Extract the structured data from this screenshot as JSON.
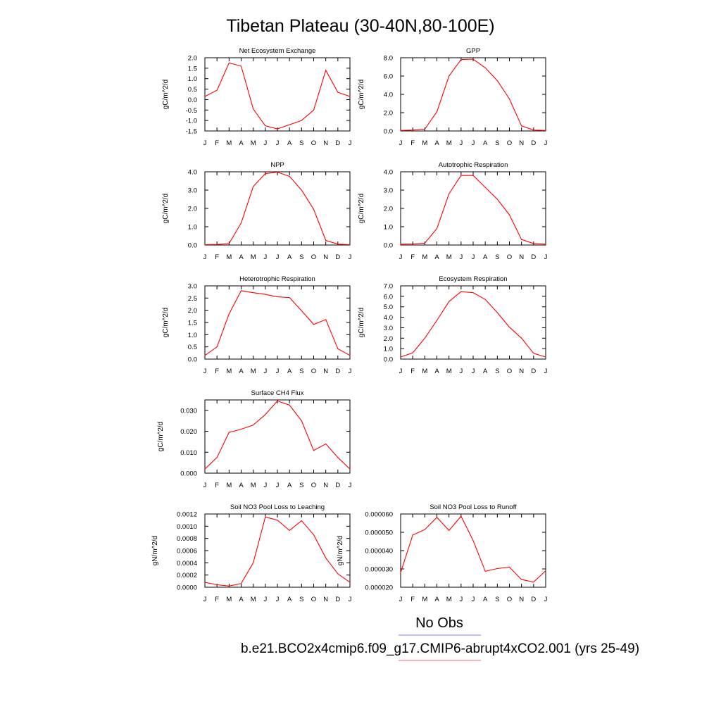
{
  "title": "Tibetan Plateau (30-40N,80-100E)",
  "legend": {
    "items": [
      {
        "label": "No Obs",
        "color": "#8080ff"
      },
      {
        "label": "b.e21.BCO2x4cmip6.f09_g17.CMIP6-abrupt4xCO2.001 (yrs 25-49)",
        "color": "#ff6060"
      }
    ]
  },
  "series_color": "#ff0000",
  "months": [
    "J",
    "F",
    "M",
    "A",
    "M",
    "J",
    "J",
    "A",
    "S",
    "O",
    "N",
    "D",
    "J"
  ],
  "chart_data": [
    {
      "type": "line",
      "title": "Net Ecosystem Exchange",
      "ylabel": "gC/m^2/d",
      "ylim": [
        -1.5,
        2.0
      ],
      "yticks": [
        "2.0",
        "1.5",
        "1.0",
        "0.5",
        "0.0",
        "-0.5",
        "-1.0",
        "-1.5"
      ],
      "ytick_values": [
        2.0,
        1.5,
        1.0,
        0.5,
        0.0,
        -0.5,
        -1.0,
        -1.5
      ],
      "values": [
        0.15,
        0.45,
        1.75,
        1.6,
        -0.45,
        -1.25,
        -1.4,
        -1.2,
        -1.0,
        -0.5,
        1.4,
        0.35,
        0.15
      ]
    },
    {
      "type": "line",
      "title": "GPP",
      "ylabel": "gC/m^2/d",
      "ylim": [
        0.0,
        8.0
      ],
      "yticks": [
        "8.0",
        "6.0",
        "4.0",
        "2.0",
        "0.0"
      ],
      "ytick_values": [
        8.0,
        6.0,
        4.0,
        2.0,
        0.0
      ],
      "values": [
        0.05,
        0.1,
        0.2,
        2.1,
        6.0,
        7.8,
        7.85,
        6.9,
        5.5,
        3.5,
        0.55,
        0.1,
        0.05
      ]
    },
    {
      "type": "line",
      "title": "NPP",
      "ylabel": "gC/m^2/d",
      "ylim": [
        0.0,
        4.0
      ],
      "yticks": [
        "4.0",
        "3.0",
        "2.0",
        "1.0",
        "0.0"
      ],
      "ytick_values": [
        4.0,
        3.0,
        2.0,
        1.0,
        0.0
      ],
      "values": [
        0.02,
        0.03,
        0.08,
        1.2,
        3.2,
        3.9,
        3.98,
        3.75,
        3.0,
        1.95,
        0.25,
        0.05,
        0.02
      ]
    },
    {
      "type": "line",
      "title": "Autotrophic Respiration",
      "ylabel": "gC/m^2/d",
      "ylim": [
        0.0,
        4.0
      ],
      "yticks": [
        "4.0",
        "3.0",
        "2.0",
        "1.0",
        "0.0"
      ],
      "ytick_values": [
        4.0,
        3.0,
        2.0,
        1.0,
        0.0
      ],
      "values": [
        0.05,
        0.06,
        0.1,
        0.9,
        2.8,
        3.8,
        3.8,
        3.15,
        2.5,
        1.65,
        0.3,
        0.08,
        0.05
      ]
    },
    {
      "type": "line",
      "title": "Heterotrophic Respiration",
      "ylabel": "gC/m^2/d",
      "ylim": [
        0.0,
        3.0
      ],
      "yticks": [
        "3.0",
        "2.5",
        "2.0",
        "1.5",
        "1.0",
        "0.5",
        "0.0"
      ],
      "ytick_values": [
        3.0,
        2.5,
        2.0,
        1.5,
        1.0,
        0.5,
        0.0
      ],
      "values": [
        0.15,
        0.5,
        1.85,
        2.8,
        2.72,
        2.65,
        2.55,
        2.52,
        1.98,
        1.42,
        1.62,
        0.42,
        0.15
      ]
    },
    {
      "type": "line",
      "title": "Ecosystem Respiration",
      "ylabel": "gC/m^2/d",
      "ylim": [
        0.0,
        7.0
      ],
      "yticks": [
        "7.0",
        "6.0",
        "5.0",
        "4.0",
        "3.0",
        "2.0",
        "1.0",
        "0.0"
      ],
      "ytick_values": [
        7.0,
        6.0,
        5.0,
        4.0,
        3.0,
        2.0,
        1.0,
        0.0
      ],
      "values": [
        0.2,
        0.6,
        2.0,
        3.7,
        5.5,
        6.45,
        6.35,
        5.7,
        4.45,
        3.05,
        2.0,
        0.55,
        0.2
      ]
    },
    {
      "type": "line",
      "title": "Surface CH4 Flux",
      "ylabel": "gC/m^2/d",
      "ylim": [
        0.0,
        0.035
      ],
      "yticks": [
        "0.030",
        "0.020",
        "0.010",
        "0.000"
      ],
      "ytick_values": [
        0.03,
        0.02,
        0.01,
        0.0
      ],
      "values": [
        0.002,
        0.0075,
        0.0195,
        0.021,
        0.023,
        0.028,
        0.0345,
        0.0325,
        0.025,
        0.0108,
        0.014,
        0.0075,
        0.002
      ]
    },
    {
      "type": "line",
      "title": "Soil NO3 Pool Loss to Leaching",
      "ylabel": "gN/m^2/d",
      "ylim": [
        0.0,
        0.0012
      ],
      "yticks": [
        "0.0012",
        "0.0010",
        "0.0008",
        "0.0006",
        "0.0004",
        "0.0002",
        "0.0000"
      ],
      "ytick_values": [
        0.0012,
        0.001,
        0.0008,
        0.0006,
        0.0004,
        0.0002,
        0.0
      ],
      "values": [
        8e-05,
        4e-05,
        2e-05,
        6e-05,
        0.0004,
        0.00115,
        0.0011,
        0.00093,
        0.00109,
        0.00086,
        0.00048,
        0.00022,
        8e-05
      ]
    },
    {
      "type": "line",
      "title": "Soil NO3 Pool Loss to Runoff",
      "ylabel": "gN/m^2/d",
      "ylim": [
        2e-05,
        6e-05
      ],
      "yticks": [
        "0.000060",
        "0.000050",
        "0.000040",
        "0.000030",
        "0.000020"
      ],
      "ytick_values": [
        6e-05,
        5e-05,
        4e-05,
        3e-05,
        2e-05
      ],
      "values": [
        2.8e-05,
        4.85e-05,
        5.15e-05,
        5.82e-05,
        5.1e-05,
        5.88e-05,
        4.55e-05,
        2.87e-05,
        3.02e-05,
        3.1e-05,
        2.42e-05,
        2.28e-05,
        2.9e-05
      ]
    }
  ]
}
